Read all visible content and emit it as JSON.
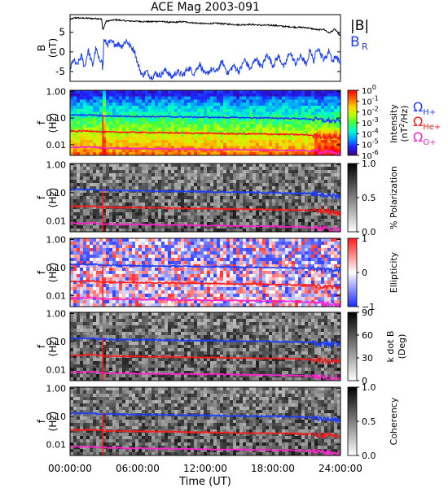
{
  "chart_data": {
    "type": "heatmap",
    "title": "ACE Mag 2003-091",
    "xlabel": "Time (UT)",
    "x_ticks": [
      "00:00:00",
      "06:00:00",
      "12:00:00",
      "18:00:00",
      "24:00:00"
    ],
    "x_range_hours": [
      0,
      24
    ],
    "line_panel": {
      "ylabel": "B (nT)",
      "ylabel_parts": [
        "B",
        "(nT)"
      ],
      "ylim": [
        -7.5,
        9.5
      ],
      "y_ticks": [
        "5",
        "0",
        "-5"
      ],
      "y_tick_values": [
        5,
        0,
        -5
      ],
      "legend": [
        {
          "label": "|B|",
          "color": "#000000"
        },
        {
          "label": "B",
          "subscript": "R",
          "color": "#1a3cff"
        }
      ],
      "series": [
        {
          "name": "|B|",
          "color": "#000000",
          "x_hours": [
            0,
            0.5,
            1,
            1.5,
            2,
            2.5,
            2.8,
            2.9,
            3.2,
            4,
            5,
            6,
            7,
            8,
            9,
            10,
            11,
            12,
            13,
            14,
            15,
            16,
            17,
            18,
            19,
            20,
            21,
            21.5,
            22,
            22.5,
            23,
            23.5,
            24
          ],
          "values": [
            8.3,
            8.7,
            8.6,
            8.6,
            8.5,
            8.5,
            8.4,
            5.5,
            7.8,
            8.2,
            7.9,
            7.8,
            7.7,
            7.8,
            7.5,
            7.7,
            7.4,
            7.2,
            7.3,
            7.1,
            6.9,
            7.0,
            6.8,
            6.8,
            6.5,
            6.3,
            6.2,
            5.9,
            5.6,
            5.8,
            4.8,
            5.8,
            4.0
          ]
        },
        {
          "name": "B_R",
          "color": "#1a3cff",
          "x_hours": [
            0,
            0.3,
            0.6,
            1,
            1.3,
            1.6,
            2,
            2.3,
            2.6,
            2.8,
            2.9,
            3.0,
            3.3,
            3.6,
            4,
            4.3,
            4.6,
            5,
            5.3,
            5.7,
            6,
            6.4,
            6.8,
            7.2,
            7.6,
            8,
            8.5,
            9,
            9.5,
            10,
            10.5,
            11,
            11.5,
            12,
            12.5,
            13,
            13.5,
            14,
            14.5,
            15,
            15.5,
            16,
            16.5,
            17,
            17.5,
            18,
            18.5,
            19,
            19.5,
            20,
            20.5,
            21,
            21.3,
            21.6,
            22,
            22.3,
            22.6,
            23,
            23.3,
            23.6,
            24
          ],
          "values": [
            -4.5,
            -2.0,
            -3.5,
            -1.0,
            -4.0,
            0.5,
            -3.5,
            1.0,
            -2.5,
            -1.5,
            -5.0,
            3.0,
            2.0,
            2.5,
            2.0,
            2.0,
            1.5,
            3.0,
            1.5,
            0.5,
            -3.0,
            -6.0,
            -5.0,
            -6.5,
            -5.5,
            -6.0,
            -4.5,
            -6.5,
            -5.0,
            -6.0,
            -4.0,
            -5.5,
            -3.0,
            -6.0,
            -4.5,
            -5.0,
            -2.5,
            -5.5,
            -3.5,
            -5.0,
            -2.0,
            -4.5,
            -1.5,
            -4.0,
            -0.5,
            -3.5,
            -1.0,
            -4.0,
            0.0,
            -3.0,
            -1.0,
            -3.5,
            1.0,
            -2.5,
            1.5,
            -1.0,
            -2.0,
            0.5,
            -2.5,
            -1.0,
            -3.0
          ]
        }
      ]
    },
    "spectrogram_panels": [
      {
        "name": "intensity",
        "ylabel": "f (Hz)",
        "ylabel_parts": [
          "f",
          "(Hz)"
        ],
        "y_scale": "log",
        "ylim": [
          0.004,
          1.1
        ],
        "y_ticks": [
          "1.00",
          "0.10",
          "0.01"
        ],
        "y_tick_values": [
          1.0,
          0.1,
          0.01
        ],
        "colorbar_title": "Intensity (nT²/Hz)",
        "colorbar_title_parts": [
          "Intensity",
          "(nT",
          "2",
          "/Hz)"
        ],
        "colorbar_scale": "log",
        "colorbar_range": [
          1e-06,
          1.0
        ],
        "colorbar_ticks": [
          {
            "base": "10",
            "exp": "0",
            "value": 1.0
          },
          {
            "base": "10",
            "exp": "-1",
            "value": 0.1
          },
          {
            "base": "10",
            "exp": "-2",
            "value": 0.01
          },
          {
            "base": "10",
            "exp": "-3",
            "value": 0.001
          },
          {
            "base": "10",
            "exp": "-4",
            "value": 0.0001
          },
          {
            "base": "10",
            "exp": "-5",
            "value": 1e-05
          },
          {
            "base": "10",
            "exp": "-6",
            "value": 1e-06
          }
        ],
        "colormap": [
          "#3a0078",
          "#2020ff",
          "#00a0ff",
          "#00ffd0",
          "#40ff40",
          "#c0ff00",
          "#ffd000",
          "#ff6000",
          "#ff0000"
        ],
        "side_labels": [
          {
            "symbol": "Ω",
            "sub": "H+",
            "color": "#1a3cff"
          },
          {
            "symbol": "Ω",
            "sub": "He+",
            "color": "#ff1a1a"
          },
          {
            "symbol": "Ω",
            "sub": "O+",
            "color": "#ff22cc"
          }
        ]
      },
      {
        "name": "polarization",
        "ylabel": "f (Hz)",
        "ylabel_parts": [
          "f",
          "(Hz)"
        ],
        "y_scale": "log",
        "ylim": [
          0.004,
          1.1
        ],
        "y_ticks": [
          "1.00",
          "0.10",
          "0.01"
        ],
        "y_tick_values": [
          1.0,
          0.1,
          0.01
        ],
        "colorbar_title": "% Polarization",
        "colorbar_title_parts": [
          "% Polarization"
        ],
        "colorbar_scale": "linear",
        "colorbar_range": [
          0,
          1
        ],
        "colorbar_ticks": [
          {
            "label": "1.0",
            "value": 1.0
          },
          {
            "label": "0.5",
            "value": 0.5
          },
          {
            "label": "0.0",
            "value": 0.0
          }
        ],
        "colormap": [
          "#ffffff",
          "#000000"
        ]
      },
      {
        "name": "ellipticity",
        "ylabel": "f (Hz)",
        "ylabel_parts": [
          "f",
          "(Hz)"
        ],
        "y_scale": "log",
        "ylim": [
          0.004,
          1.1
        ],
        "y_ticks": [
          "1.00",
          "0.10",
          "0.01"
        ],
        "y_tick_values": [
          1.0,
          0.1,
          0.01
        ],
        "colorbar_title": "Ellipticity",
        "colorbar_title_parts": [
          "Ellipticity"
        ],
        "colorbar_scale": "linear",
        "colorbar_range": [
          -1,
          1
        ],
        "colorbar_ticks": [
          {
            "label": "1",
            "value": 1
          },
          {
            "label": "0",
            "value": 0
          },
          {
            "label": "−1",
            "value": -1
          }
        ],
        "colormap": [
          "#1a2aff",
          "#ffffff",
          "#ff1a1a"
        ]
      },
      {
        "name": "kdotb",
        "ylabel": "f (Hz)",
        "ylabel_parts": [
          "f",
          "(Hz)"
        ],
        "y_scale": "log",
        "ylim": [
          0.004,
          1.1
        ],
        "y_ticks": [
          "1.00",
          "0.10",
          "0.01"
        ],
        "y_tick_values": [
          1.0,
          0.1,
          0.01
        ],
        "colorbar_title": "k dot B (Deg)",
        "colorbar_title_parts": [
          "k dot B",
          "(Deg)"
        ],
        "colorbar_scale": "linear",
        "colorbar_range": [
          0,
          90
        ],
        "colorbar_ticks": [
          {
            "label": "90",
            "value": 90
          },
          {
            "label": "60",
            "value": 60
          },
          {
            "label": "30",
            "value": 30
          },
          {
            "label": "0",
            "value": 0
          }
        ],
        "colormap": [
          "#ffffff",
          "#000000"
        ]
      },
      {
        "name": "coherency",
        "ylabel": "f (Hz)",
        "ylabel_parts": [
          "f",
          "(Hz)"
        ],
        "y_scale": "log",
        "ylim": [
          0.004,
          1.1
        ],
        "y_ticks": [
          "1.00",
          "0.10",
          "0.01"
        ],
        "y_tick_values": [
          1.0,
          0.1,
          0.01
        ],
        "colorbar_title": "Coherency",
        "colorbar_title_parts": [
          "Coherency"
        ],
        "colorbar_scale": "linear",
        "colorbar_range": [
          0,
          1
        ],
        "colorbar_ticks": [
          {
            "label": "1.0",
            "value": 1.0
          },
          {
            "label": "0.5",
            "value": 0.5
          },
          {
            "label": "0.0",
            "value": 0.0
          }
        ],
        "colormap": [
          "#ffffff",
          "#000000"
        ]
      }
    ],
    "gyrofrequency_lines": [
      {
        "name": "ΩH+",
        "color": "#1a3cff",
        "x_hours": [
          0,
          2,
          2.9,
          3.2,
          6,
          10,
          14,
          18,
          21,
          22,
          23,
          24
        ],
        "values_hz": [
          0.128,
          0.13,
          0.12,
          0.12,
          0.115,
          0.11,
          0.105,
          0.1,
          0.094,
          0.086,
          0.08,
          0.075
        ]
      },
      {
        "name": "ΩHe+",
        "color": "#ff1a1a",
        "x_hours": [
          0,
          2,
          2.9,
          3.2,
          6,
          10,
          14,
          18,
          21,
          22,
          23,
          24
        ],
        "values_hz": [
          0.032,
          0.033,
          0.03,
          0.03,
          0.029,
          0.0275,
          0.026,
          0.025,
          0.0235,
          0.0215,
          0.02,
          0.019
        ]
      },
      {
        "name": "ΩO+",
        "color": "#ff22cc",
        "x_hours": [
          0,
          2,
          2.9,
          3.2,
          6,
          10,
          14,
          18,
          21,
          22,
          23,
          24
        ],
        "values_hz": [
          0.008,
          0.0082,
          0.0075,
          0.0075,
          0.0072,
          0.0069,
          0.0066,
          0.0063,
          0.0059,
          0.0054,
          0.005,
          0.0047
        ]
      }
    ]
  }
}
